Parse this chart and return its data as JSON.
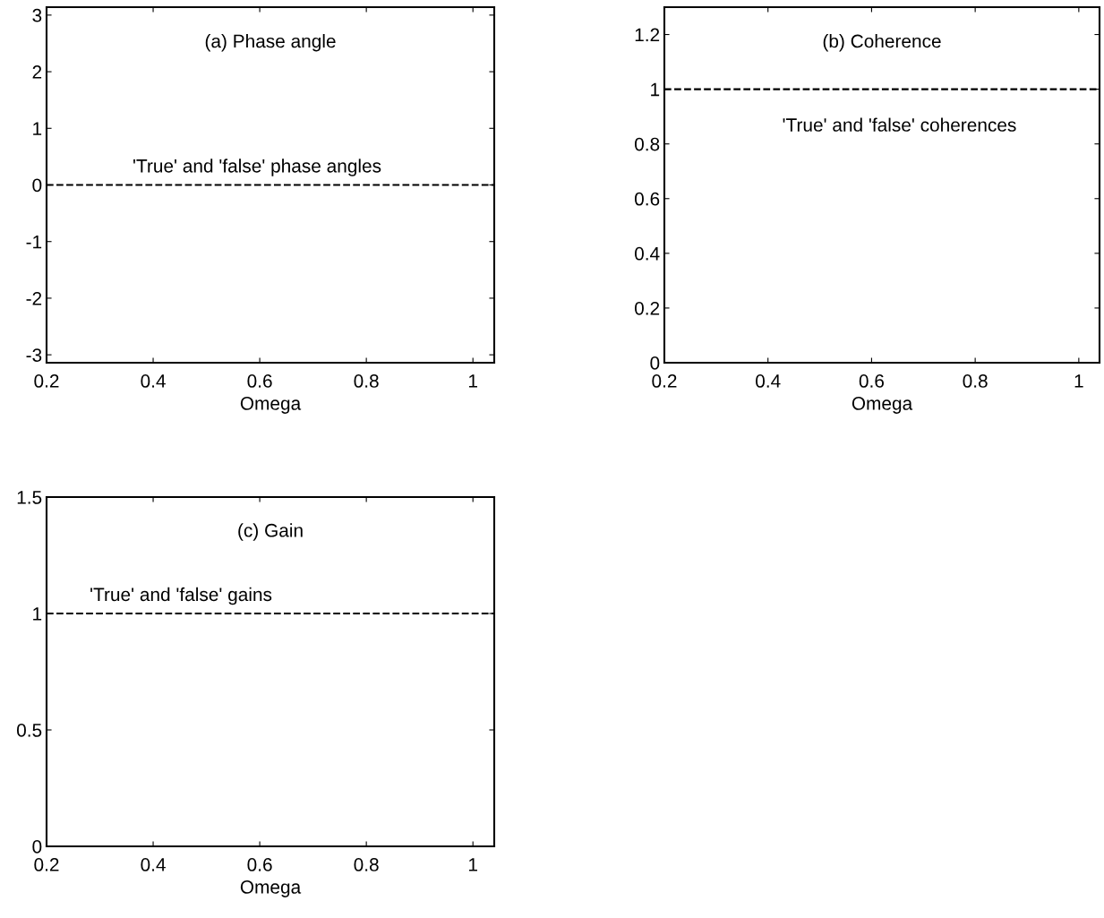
{
  "chart_data": [
    {
      "type": "line",
      "title": "(a) Phase angle",
      "xlabel": "Omega",
      "xlim": [
        0.2,
        1.04
      ],
      "xticks": [
        0.2,
        0.4,
        0.6,
        0.8,
        1
      ],
      "ylim": [
        -3.14,
        3.14
      ],
      "yticks": [
        -3,
        -2,
        -1,
        0,
        1,
        2,
        3
      ],
      "ref_lines": [
        {
          "axis": "y",
          "value": 0,
          "label": "'True' and 'false' phase angles",
          "color": "#000000",
          "line_style": "dashed"
        }
      ]
    },
    {
      "type": "line",
      "title": "(b) Coherence",
      "xlabel": "Omega",
      "xlim": [
        0.2,
        1.04
      ],
      "xticks": [
        0.2,
        0.4,
        0.6,
        0.8,
        1
      ],
      "ylim": [
        0,
        1.3
      ],
      "yticks": [
        0,
        0.2,
        0.4,
        0.6,
        0.8,
        1,
        1.2
      ],
      "ref_lines": [
        {
          "axis": "y",
          "value": 1,
          "label": "'True' and 'false' coherences",
          "color": "#000000",
          "line_style": "dashed"
        }
      ]
    },
    {
      "type": "line",
      "title": "(c) Gain",
      "xlabel": "Omega",
      "xlim": [
        0.2,
        1.04
      ],
      "xticks": [
        0.2,
        0.4,
        0.6,
        0.8,
        1
      ],
      "ylim": [
        0,
        1.5
      ],
      "yticks": [
        0,
        0.5,
        1,
        1.5
      ],
      "ref_lines": [
        {
          "axis": "y",
          "value": 1,
          "label": "'True' and 'false' gains",
          "color": "#000000",
          "line_style": "dashed"
        }
      ]
    }
  ]
}
